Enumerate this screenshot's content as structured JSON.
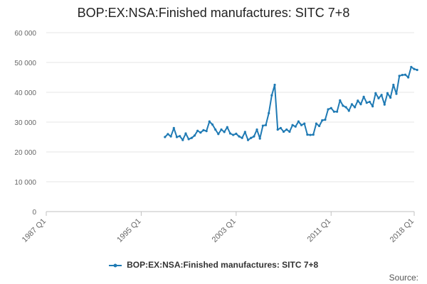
{
  "chart_data": {
    "type": "line",
    "title": "BOP:EX:NSA:Finished manufactures: SITC 7+8",
    "xlabel": "",
    "ylabel": "",
    "ylim": [
      0,
      60000
    ],
    "yticks": [
      "0",
      "10 000",
      "20 000",
      "30 000",
      "40 000",
      "50 000",
      "60 000"
    ],
    "yticks_values": [
      0,
      10000,
      20000,
      30000,
      40000,
      50000,
      60000
    ],
    "xlim": [
      "1987 Q1",
      "2018 Q1"
    ],
    "xticks": [
      "1987 Q1",
      "1995 Q1",
      "2003 Q1",
      "2011 Q1",
      "2018 Q1"
    ],
    "grid": "horizontal",
    "legend": "bottom",
    "color": "#1f7ab4",
    "series": [
      {
        "name": "BOP:EX:NSA:Finished manufactures: SITC 7+8",
        "x": [
          "1997 Q1",
          "1997 Q2",
          "1997 Q3",
          "1997 Q4",
          "1998 Q1",
          "1998 Q2",
          "1998 Q3",
          "1998 Q4",
          "1999 Q1",
          "1999 Q2",
          "1999 Q3",
          "1999 Q4",
          "2000 Q1",
          "2000 Q2",
          "2000 Q3",
          "2000 Q4",
          "2001 Q1",
          "2001 Q2",
          "2001 Q3",
          "2001 Q4",
          "2002 Q1",
          "2002 Q2",
          "2002 Q3",
          "2002 Q4",
          "2003 Q1",
          "2003 Q2",
          "2003 Q3",
          "2003 Q4",
          "2004 Q1",
          "2004 Q2",
          "2004 Q3",
          "2004 Q4",
          "2005 Q1",
          "2005 Q2",
          "2005 Q3",
          "2005 Q4",
          "2006 Q1",
          "2006 Q2",
          "2006 Q3",
          "2006 Q4",
          "2007 Q1",
          "2007 Q2",
          "2007 Q3",
          "2007 Q4",
          "2008 Q1",
          "2008 Q2",
          "2008 Q3",
          "2008 Q4",
          "2009 Q1",
          "2009 Q2",
          "2009 Q3",
          "2009 Q4",
          "2010 Q1",
          "2010 Q2",
          "2010 Q3",
          "2010 Q4",
          "2011 Q1",
          "2011 Q2",
          "2011 Q3",
          "2011 Q4",
          "2012 Q1",
          "2012 Q2",
          "2012 Q3",
          "2012 Q4",
          "2013 Q1",
          "2013 Q2",
          "2013 Q3",
          "2013 Q4",
          "2014 Q1",
          "2014 Q2",
          "2014 Q3",
          "2014 Q4",
          "2015 Q1",
          "2015 Q2",
          "2015 Q3",
          "2015 Q4",
          "2016 Q1",
          "2016 Q2",
          "2016 Q3",
          "2016 Q4",
          "2017 Q1",
          "2017 Q2",
          "2017 Q3",
          "2017 Q4",
          "2018 Q1",
          "2018 Q2"
        ],
        "values": [
          25000,
          26000,
          25200,
          28000,
          25000,
          25300,
          24000,
          26200,
          24300,
          24700,
          25500,
          27100,
          26500,
          27300,
          27000,
          30200,
          29200,
          27500,
          26000,
          27500,
          26700,
          28300,
          26200,
          25700,
          26100,
          25200,
          24700,
          26700,
          24000,
          24700,
          25200,
          27500,
          24500,
          28800,
          29000,
          33000,
          39000,
          42500,
          27500,
          28000,
          26800,
          27500,
          26800,
          29000,
          28500,
          30200,
          29000,
          29500,
          25800,
          25700,
          25800,
          29500,
          28700,
          30600,
          30800,
          34300,
          34700,
          33500,
          33500,
          37300,
          35500,
          35000,
          33800,
          36000,
          35000,
          37200,
          36000,
          38500,
          36500,
          36800,
          35300,
          39700,
          38000,
          39100,
          35900,
          39700,
          38200,
          42500,
          39500,
          45500,
          45800,
          45900,
          45000,
          48500,
          47800,
          47500
        ]
      }
    ]
  },
  "legend": {
    "label": "BOP:EX:NSA:Finished manufactures: SITC 7+8"
  },
  "footer": {
    "source": "Source:"
  }
}
